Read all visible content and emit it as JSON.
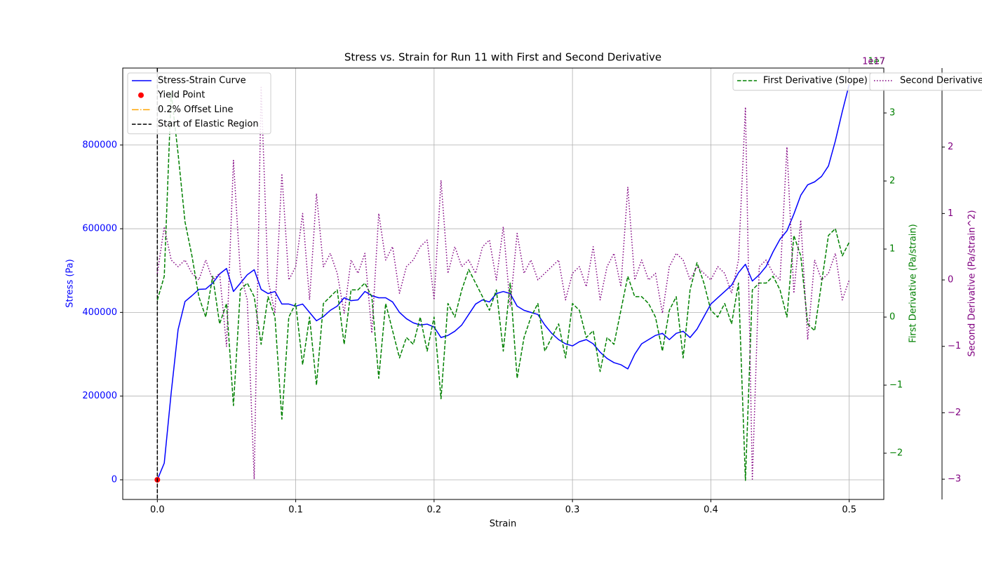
{
  "chart_data": {
    "type": "line",
    "title": "Stress vs. Strain for Run 11 with First and Second Derivative",
    "xlabel": "Strain",
    "ylabel": "Stress (Pa)",
    "y2label": "First Derivative (Pa/strain)",
    "y3label": "Second Derivative (Pa/strain^2)",
    "y2_offset_label": "1e7",
    "y3_offset_label": "1e17",
    "grid": true,
    "xlim": [
      -0.025,
      0.525
    ],
    "xticks": [
      {
        "value": 0,
        "label": "0.0"
      },
      0.1,
      0.2,
      0.3,
      0.4,
      0.5
    ],
    "ylim": [
      -47000,
      984000
    ],
    "yticks": [
      0,
      200000,
      400000,
      600000,
      800000
    ],
    "y2lim": [
      -2.68,
      3.66
    ],
    "y2ticks": [
      {
        "value": -2,
        "label": "−2"
      },
      {
        "value": -1,
        "label": "−1"
      },
      0,
      1,
      2,
      3
    ],
    "y3lim": [
      -3.305,
      3.19
    ],
    "y3ticks": [
      {
        "value": -3,
        "label": "−3"
      },
      {
        "value": -2,
        "label": "−2"
      },
      {
        "value": -1,
        "label": "−1"
      },
      0,
      1,
      2
    ],
    "x": [
      0,
      0.005,
      0.01,
      0.015,
      0.02,
      0.025,
      0.03,
      0.035,
      0.04,
      0.045,
      0.05,
      0.055,
      0.06,
      0.065,
      0.07,
      0.075,
      0.08,
      0.085,
      0.09,
      0.095,
      0.1,
      0.105,
      0.11,
      0.115,
      0.12,
      0.125,
      0.13,
      0.135,
      0.14,
      0.145,
      0.15,
      0.155,
      0.16,
      0.165,
      0.17,
      0.175,
      0.18,
      0.185,
      0.19,
      0.195,
      0.2,
      0.205,
      0.21,
      0.215,
      0.22,
      0.225,
      0.23,
      0.235,
      0.24,
      0.245,
      0.25,
      0.255,
      0.26,
      0.265,
      0.27,
      0.275,
      0.28,
      0.285,
      0.29,
      0.295,
      0.3,
      0.305,
      0.31,
      0.315,
      0.32,
      0.325,
      0.33,
      0.335,
      0.34,
      0.345,
      0.35,
      0.355,
      0.36,
      0.365,
      0.37,
      0.375,
      0.38,
      0.385,
      0.39,
      0.395,
      0.4,
      0.405,
      0.41,
      0.415,
      0.42,
      0.425,
      0.43,
      0.435,
      0.44,
      0.445,
      0.45,
      0.455,
      0.46,
      0.465,
      0.47,
      0.475,
      0.48,
      0.485,
      0.49,
      0.495,
      0.5
    ],
    "series": [
      {
        "name": "Stress-Strain Curve",
        "color": "#0000ff",
        "style": "solid",
        "axis": "y",
        "values": [
          0,
          40000,
          208000,
          359000,
          426000,
          440000,
          455000,
          456000,
          470000,
          492000,
          505000,
          450000,
          470000,
          490000,
          502000,
          455000,
          445000,
          450000,
          420000,
          420000,
          415000,
          420000,
          400000,
          380000,
          390000,
          405000,
          415000,
          435000,
          428000,
          430000,
          450000,
          440000,
          435000,
          435000,
          425000,
          400000,
          385000,
          375000,
          370000,
          372000,
          365000,
          340000,
          345000,
          355000,
          370000,
          395000,
          420000,
          430000,
          425000,
          445000,
          450000,
          445000,
          415000,
          405000,
          400000,
          395000,
          370000,
          350000,
          335000,
          325000,
          320000,
          330000,
          335000,
          325000,
          305000,
          290000,
          280000,
          275000,
          265000,
          300000,
          325000,
          335000,
          345000,
          350000,
          335000,
          350000,
          355000,
          340000,
          360000,
          390000,
          420000,
          435000,
          450000,
          465000,
          495000,
          515000,
          475000,
          490000,
          510000,
          545000,
          575000,
          595000,
          635000,
          680000,
          705000,
          712000,
          725000,
          750000,
          810000,
          880000,
          945000
        ]
      },
      {
        "name": "Yield Point",
        "color": "#ff0000",
        "style": "marker",
        "axis": "y",
        "x": [
          0
        ],
        "values": [
          0
        ]
      },
      {
        "name": "0.2% Offset Line",
        "color": "#ffa500",
        "style": "dashdot",
        "axis": "y"
      },
      {
        "name": "Start of Elastic Region",
        "color": "#000000",
        "style": "dashed",
        "axis": "y",
        "vline": 0
      },
      {
        "name": "First Derivative (Slope)",
        "color": "#008000",
        "style": "dashed",
        "axis": "y2",
        "values": [
          0.25,
          0.6,
          3.3,
          2.4,
          1.4,
          0.9,
          0.3,
          0.0,
          0.6,
          -0.1,
          0.2,
          -1.3,
          0.4,
          0.5,
          0.3,
          -0.4,
          0.3,
          0.0,
          -1.5,
          0.0,
          0.2,
          -0.7,
          0.0,
          -1.0,
          0.2,
          0.3,
          0.4,
          -0.4,
          0.4,
          0.4,
          0.5,
          0.3,
          -0.9,
          0.2,
          -0.2,
          -0.6,
          -0.3,
          -0.4,
          0.0,
          -0.5,
          0.0,
          -1.2,
          0.2,
          0.0,
          0.4,
          0.7,
          0.5,
          0.3,
          0.1,
          0.4,
          -0.5,
          0.5,
          -0.9,
          -0.3,
          0.0,
          0.2,
          -0.5,
          -0.3,
          -0.1,
          -0.6,
          0.2,
          0.1,
          -0.3,
          -0.2,
          -0.8,
          -0.3,
          -0.4,
          0.1,
          0.6,
          0.3,
          0.3,
          0.2,
          0.0,
          -0.5,
          0.1,
          0.3,
          -0.6,
          0.4,
          0.8,
          0.5,
          0.1,
          0.0,
          0.2,
          -0.1,
          0.5,
          -2.4,
          0.4,
          0.5,
          0.5,
          0.6,
          0.4,
          0.0,
          1.2,
          0.9,
          -0.1,
          -0.2,
          0.5,
          1.2,
          1.3,
          0.9,
          1.1
        ]
      },
      {
        "name": "Second Derivative",
        "color": "#800080",
        "style": "dotted",
        "axis": "y3",
        "values": [
          0.1,
          0.8,
          0.3,
          0.2,
          0.3,
          0.1,
          0.0,
          0.3,
          0.0,
          0.1,
          -1.0,
          1.8,
          0.1,
          -0.3,
          -3.0,
          2.9,
          0.0,
          -0.5,
          1.6,
          0.0,
          0.2,
          1.0,
          -0.3,
          1.3,
          0.2,
          0.4,
          0.1,
          -0.5,
          0.3,
          0.1,
          0.4,
          -0.8,
          1.0,
          0.3,
          0.5,
          -0.2,
          0.2,
          0.3,
          0.5,
          0.6,
          -0.3,
          1.5,
          0.1,
          0.5,
          0.2,
          0.3,
          0.1,
          0.5,
          0.6,
          0.0,
          0.8,
          -0.4,
          0.7,
          0.1,
          0.3,
          0.0,
          0.1,
          0.2,
          0.3,
          -0.3,
          0.1,
          0.2,
          -0.1,
          0.5,
          -0.3,
          0.2,
          0.4,
          -0.1,
          1.4,
          0.0,
          0.3,
          0.0,
          0.1,
          -0.5,
          0.2,
          0.4,
          0.3,
          0.0,
          0.2,
          0.1,
          0.0,
          0.2,
          0.1,
          -0.2,
          0.3,
          2.6,
          -3.0,
          0.2,
          0.3,
          0.1,
          0.0,
          2.0,
          -0.2,
          0.9,
          -0.9,
          0.3,
          0.0,
          0.1,
          0.4,
          -0.3,
          0.0
        ]
      }
    ]
  }
}
